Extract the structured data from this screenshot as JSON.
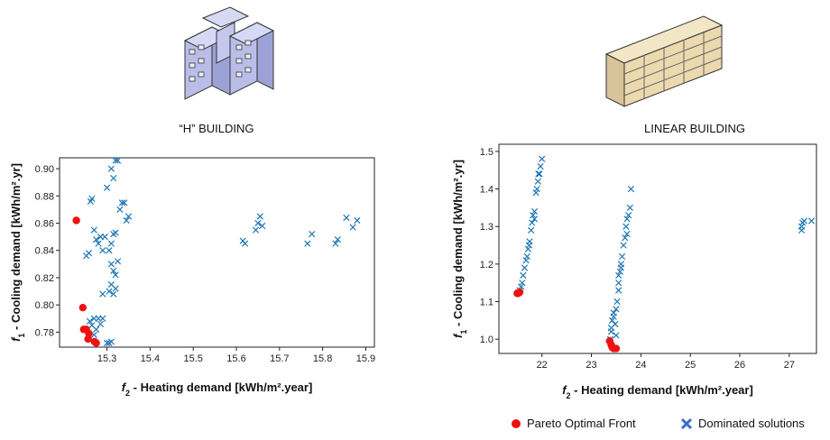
{
  "chart_data": [
    {
      "type": "scatter",
      "title": "“H” BUILDING",
      "xlabel": {
        "symbol": "f",
        "subscript": "2",
        "text": " - Heating demand [kWh/m².year]"
      },
      "ylabel": {
        "symbol": "f",
        "subscript": "1",
        "text": " - Cooling demand [kWh/m².yr]"
      },
      "xlim": [
        15.19,
        15.92
      ],
      "ylim": [
        0.769,
        0.908
      ],
      "xticks": [
        15.3,
        15.4,
        15.5,
        15.6,
        15.7,
        15.8,
        15.9
      ],
      "yticks": [
        0.78,
        {
          "value": 0.8,
          "label": "0.80"
        },
        0.82,
        0.84,
        0.86,
        0.88,
        {
          "value": 0.9,
          "label": "0.90"
        }
      ],
      "series": [
        {
          "color": "#1f77b4",
          "marker": "x",
          "x": [
            15.252,
            15.258,
            15.262,
            15.265,
            15.27,
            15.275,
            15.28,
            15.285,
            15.29,
            15.295,
            15.3,
            15.31,
            15.315,
            15.32,
            15.325,
            15.33,
            15.335,
            15.34,
            15.345,
            15.35,
            15.32,
            15.315,
            15.31,
            15.305,
            15.31,
            15.315,
            15.32,
            15.31,
            15.305,
            15.315,
            15.32,
            15.325,
            15.29,
            15.28,
            15.285,
            15.27,
            15.265,
            15.27,
            15.275,
            15.3,
            15.305,
            15.31,
            15.29,
            15.26,
            15.615,
            15.62,
            15.645,
            15.65,
            15.655,
            15.66,
            15.765,
            15.775,
            15.83,
            15.835,
            15.855,
            15.87,
            15.88
          ],
          "values": [
            0.836,
            0.838,
            0.876,
            0.878,
            0.855,
            0.848,
            0.845,
            0.85,
            0.84,
            0.85,
            0.886,
            0.9,
            0.893,
            0.906,
            0.906,
            0.87,
            0.875,
            0.875,
            0.862,
            0.865,
            0.853,
            0.852,
            0.845,
            0.84,
            0.83,
            0.825,
            0.822,
            0.815,
            0.81,
            0.808,
            0.812,
            0.832,
            0.808,
            0.79,
            0.786,
            0.79,
            0.785,
            0.778,
            0.782,
            0.772,
            0.772,
            0.773,
            0.79,
            0.788,
            0.847,
            0.845,
            0.855,
            0.86,
            0.865,
            0.858,
            0.845,
            0.852,
            0.845,
            0.848,
            0.864,
            0.857,
            0.862
          ]
        },
        {
          "color": "#ee1111",
          "marker": "o",
          "x": [
            15.229,
            15.244,
            15.246,
            15.252,
            15.256,
            15.258,
            15.271,
            15.275
          ],
          "values": [
            0.862,
            0.798,
            0.782,
            0.782,
            0.775,
            0.779,
            0.773,
            0.772
          ]
        }
      ]
    },
    {
      "type": "scatter",
      "title": "LINEAR BUILDING",
      "xlabel": {
        "symbol": "f",
        "subscript": "2",
        "text": " - Heating demand [kWh/m².year]"
      },
      "ylabel": {
        "symbol": "f",
        "subscript": "1",
        "text": " - Cooling demand [kWh/m².yr]"
      },
      "xlim": [
        21.13,
        27.55
      ],
      "ylim": [
        0.962,
        1.519
      ],
      "xticks": [
        22,
        23,
        24,
        25,
        26,
        27
      ],
      "yticks": [
        {
          "value": 1,
          "label": "1.0"
        },
        1.1,
        1.2,
        1.3,
        1.4,
        1.5
      ],
      "series": [
        {
          "name": "Dominated solutions",
          "color": "#1f77b4",
          "marker": "x",
          "x": [
            21.55,
            21.58,
            21.6,
            21.62,
            21.65,
            21.68,
            21.7,
            21.72,
            21.75,
            21.78,
            21.8,
            21.82,
            21.85,
            21.88,
            21.9,
            21.92,
            21.95,
            21.97,
            22.0,
            21.93,
            21.85,
            21.74,
            23.38,
            23.4,
            23.42,
            23.45,
            23.48,
            23.5,
            23.52,
            23.55,
            23.55,
            23.58,
            23.6,
            23.62,
            23.65,
            23.68,
            23.7,
            23.72,
            23.75,
            23.78,
            23.8,
            23.5,
            23.55,
            23.6,
            23.72,
            23.45,
            23.4,
            27.25,
            27.25,
            27.27,
            27.3,
            27.45
          ],
          "values": [
            1.13,
            1.14,
            1.15,
            1.17,
            1.19,
            1.21,
            1.22,
            1.24,
            1.26,
            1.29,
            1.31,
            1.33,
            1.34,
            1.39,
            1.4,
            1.42,
            1.44,
            1.46,
            1.48,
            1.44,
            1.32,
            1.25,
            1.0,
            1.02,
            1.05,
            1.07,
            1.04,
            1.08,
            1.1,
            1.15,
            1.17,
            1.18,
            1.2,
            1.22,
            1.25,
            1.27,
            1.3,
            1.32,
            1.33,
            1.35,
            1.4,
            1.01,
            1.13,
            1.19,
            1.28,
            1.06,
            1.03,
            1.29,
            1.3,
            1.31,
            1.315,
            1.315
          ]
        },
        {
          "name": "Pareto Optimal Front",
          "color": "#ee1111",
          "marker": "o",
          "x": [
            21.5,
            21.52,
            21.55,
            23.37,
            23.4,
            23.42,
            23.45,
            23.5
          ],
          "values": [
            1.122,
            1.122,
            1.125,
            0.995,
            0.985,
            0.978,
            0.975,
            0.975
          ]
        }
      ]
    }
  ]
}
